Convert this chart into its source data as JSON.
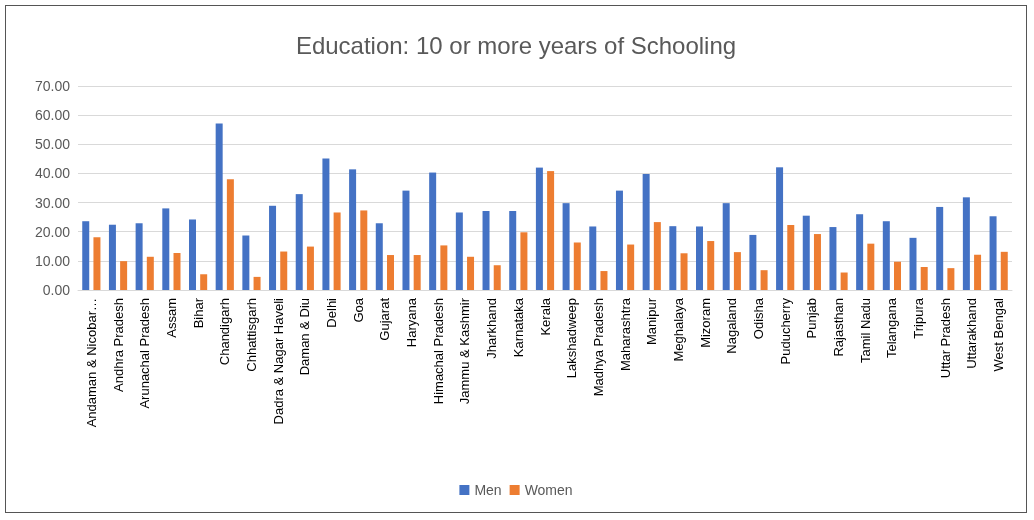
{
  "chart_data": {
    "type": "bar",
    "title": "Education: 10 or more years of Schooling",
    "categories": [
      "Andaman & Nicobar…",
      "Andhra Pradesh",
      "Arunachal Pradesh",
      "Assam",
      "Bihar",
      "Chandigarh",
      "Chhattisgarh",
      "Dadra & Nagar Haveli",
      "Daman & Diu",
      "Delhi",
      "Goa",
      "Gujarat",
      "Haryana",
      "Himachal Pradesh",
      "Jammu & Kashmir",
      "Jharkhand",
      "Karnataka",
      "Kerala",
      "Lakshadweep",
      "Madhya Pradesh",
      "Maharashtra",
      "Manipur",
      "Meghalaya",
      "Mizoram",
      "Nagaland",
      "Odisha",
      "Puducherry",
      "Punjab",
      "Rajasthan",
      "Tamil Nadu",
      "Telangana",
      "Tripura",
      "Uttar Pradesh",
      "Uttarakhand",
      "West Bengal"
    ],
    "series": [
      {
        "name": "Men",
        "color": "#4472c4",
        "values": [
          23.6,
          22.4,
          22.9,
          28.0,
          24.2,
          57.1,
          18.7,
          28.9,
          32.9,
          45.1,
          41.4,
          22.9,
          34.1,
          40.3,
          26.6,
          27.1,
          27.1,
          42.0,
          29.8,
          21.8,
          34.1,
          39.8,
          21.9,
          21.8,
          29.8,
          18.9,
          42.1,
          25.5,
          21.6,
          26.0,
          23.6,
          17.9,
          28.5,
          31.8,
          25.3
        ]
      },
      {
        "name": "Women",
        "color": "#ed7d31",
        "values": [
          18.1,
          9.9,
          11.4,
          12.7,
          5.4,
          38.0,
          4.5,
          13.2,
          14.9,
          26.6,
          27.3,
          12.0,
          12.0,
          15.3,
          11.4,
          8.5,
          19.8,
          40.8,
          16.3,
          6.5,
          15.6,
          23.3,
          12.6,
          16.8,
          13.0,
          6.8,
          22.3,
          19.2,
          6.0,
          15.9,
          9.7,
          7.9,
          7.5,
          12.1,
          13.1
        ]
      }
    ],
    "ylim": [
      0,
      70
    ],
    "yticks": [
      {
        "value": 0,
        "label": "0.00"
      },
      {
        "value": 10,
        "label": "10.00"
      },
      {
        "value": 20,
        "label": "20.00"
      },
      {
        "value": 30,
        "label": "30.00"
      },
      {
        "value": 40,
        "label": "40.00"
      },
      {
        "value": 50,
        "label": "50.00"
      },
      {
        "value": 60,
        "label": "60.00"
      },
      {
        "value": 70,
        "label": "70.00"
      }
    ],
    "grid": "y",
    "legend": "bottom"
  }
}
